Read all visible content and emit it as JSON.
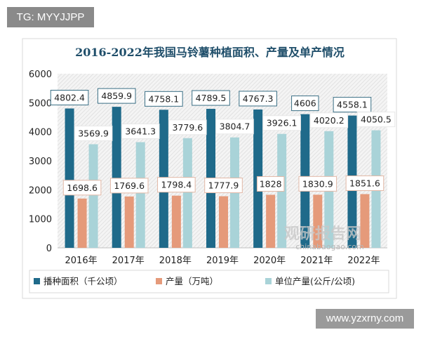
{
  "watermark_top": "TG: MYYJJPP",
  "watermark_bottom": "www.yzxrny.com",
  "logo_text": "观研报告网",
  "logo_sub": "chinabaogao.com",
  "chart_data": {
    "type": "bar",
    "title": "2016-2022年我国马铃薯种植面积、产量及单产情况",
    "categories": [
      "2016年",
      "2017年",
      "2018年",
      "2019年",
      "2020年",
      "2021年",
      "2022年"
    ],
    "ylim": [
      0,
      6000
    ],
    "yticks": [
      0,
      1000,
      2000,
      3000,
      4000,
      5000,
      6000
    ],
    "legend": "bottom",
    "series": [
      {
        "name": "播种面积（千公顷）",
        "color": "#1f6a8a",
        "values": [
          4802.4,
          4859.9,
          4758.1,
          4789.5,
          4767.3,
          4606,
          4558.1
        ],
        "labels": [
          "4802.4",
          "4859.9",
          "4758.1",
          "4789.5",
          "4767.3",
          "4606",
          "4558.1"
        ]
      },
      {
        "name": "产量（万吨）",
        "color": "#e59a7a",
        "values": [
          1698.6,
          1769.6,
          1798.4,
          1777.9,
          1828,
          1830.9,
          1851.6
        ],
        "labels": [
          "1698.6",
          "1769.6",
          "1798.4",
          "1777.9",
          "1828",
          "1830.9",
          "1851.6"
        ]
      },
      {
        "name": "单位产量(公斤/公顷)",
        "color": "#a9d3d8",
        "values": [
          3569.9,
          3641.3,
          3779.6,
          3804.7,
          3926.1,
          4020.2,
          4050.5
        ],
        "labels": [
          "3569.9",
          "3641.3",
          "3779.6",
          "3804.7",
          "3926.1",
          "4020.2",
          "4050.5"
        ]
      }
    ]
  }
}
